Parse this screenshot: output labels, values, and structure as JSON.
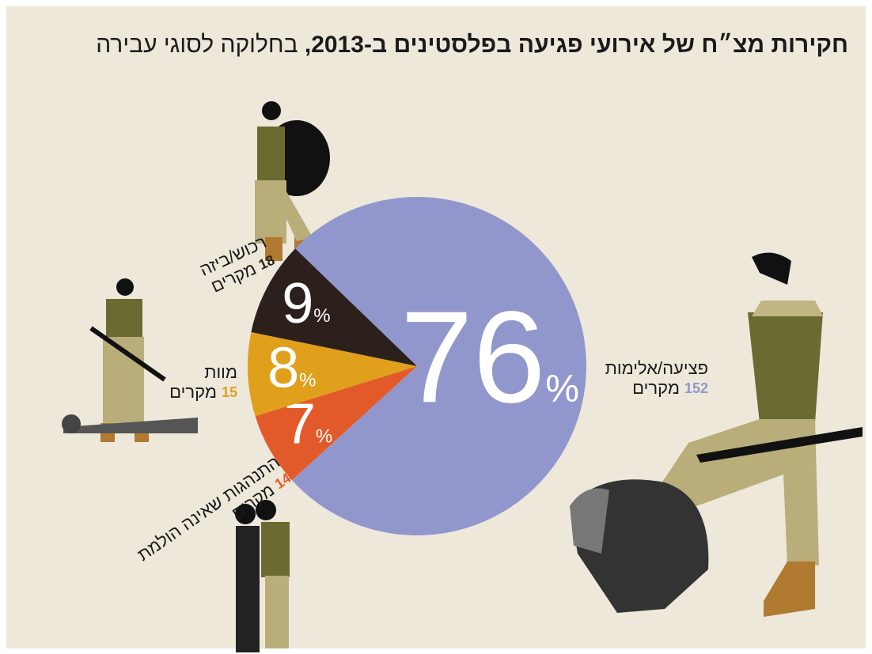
{
  "chart_data": {
    "type": "pie",
    "title": "חקירות מצ״ח של אירועי פגיעה בפלסטינים ב-2013,",
    "subtitle": "בחלוקה לסוגי עבירה",
    "categories": [
      "פציעה/אלימות",
      "התנהגות שאינה הולמת",
      "מוות",
      "רכוש/ביזה"
    ],
    "values": [
      76,
      7,
      8,
      9
    ],
    "value_labels": [
      "76%",
      "7%",
      "8%",
      "9%"
    ],
    "colors": [
      "#9197cc",
      "#e35a2a",
      "#e0a01c",
      "#2b201c"
    ],
    "counts": [
      152,
      14,
      15,
      18
    ],
    "count_label": "מקרים"
  }
}
